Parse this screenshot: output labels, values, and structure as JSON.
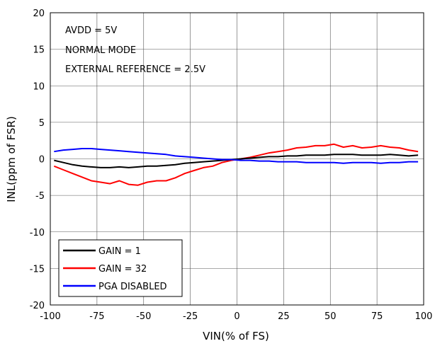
{
  "chart_data": {
    "type": "line",
    "title": "",
    "xlabel": "VIN(% of FS)",
    "ylabel": "INL(ppm of FSR)",
    "xlim": [
      -100,
      100
    ],
    "ylim": [
      -20,
      20
    ],
    "xticks": [
      -100,
      -75,
      -50,
      -25,
      0,
      25,
      50,
      75,
      100
    ],
    "yticks": [
      -20,
      -15,
      -10,
      -5,
      0,
      5,
      10,
      15,
      20
    ],
    "grid": true,
    "legend_position": "bottom-left",
    "annotations": [
      "AVDD = 5V",
      "NORMAL MODE",
      "EXTERNAL REFERENCE = 2.5V"
    ],
    "x": [
      -98,
      -93,
      -88,
      -83,
      -78,
      -73,
      -68,
      -63,
      -58,
      -53,
      -48,
      -43,
      -38,
      -33,
      -28,
      -23,
      -18,
      -13,
      -8,
      -3,
      2,
      7,
      12,
      17,
      22,
      27,
      32,
      37,
      42,
      47,
      52,
      57,
      62,
      67,
      72,
      77,
      82,
      87,
      92,
      97
    ],
    "series": [
      {
        "name": "GAIN = 1",
        "color": "#000000",
        "values": [
          -0.2,
          -0.5,
          -0.8,
          -1.0,
          -1.1,
          -1.2,
          -1.2,
          -1.1,
          -1.2,
          -1.1,
          -1.0,
          -1.0,
          -0.9,
          -0.8,
          -0.6,
          -0.5,
          -0.4,
          -0.3,
          -0.2,
          -0.1,
          0.0,
          0.1,
          0.2,
          0.3,
          0.3,
          0.4,
          0.4,
          0.5,
          0.5,
          0.5,
          0.6,
          0.6,
          0.6,
          0.5,
          0.5,
          0.5,
          0.6,
          0.5,
          0.4,
          0.5
        ]
      },
      {
        "name": "GAIN = 32",
        "color": "#ff0000",
        "values": [
          -1.0,
          -1.5,
          -2.0,
          -2.5,
          -3.0,
          -3.2,
          -3.4,
          -3.0,
          -3.5,
          -3.6,
          -3.2,
          -3.0,
          -3.0,
          -2.6,
          -2.0,
          -1.6,
          -1.2,
          -1.0,
          -0.5,
          -0.2,
          0.0,
          0.2,
          0.5,
          0.8,
          1.0,
          1.2,
          1.5,
          1.6,
          1.8,
          1.8,
          2.0,
          1.6,
          1.8,
          1.5,
          1.6,
          1.8,
          1.6,
          1.5,
          1.2,
          1.0
        ]
      },
      {
        "name": "PGA DISABLED",
        "color": "#0000ff",
        "values": [
          1.0,
          1.2,
          1.3,
          1.4,
          1.4,
          1.3,
          1.2,
          1.1,
          1.0,
          0.9,
          0.8,
          0.7,
          0.6,
          0.4,
          0.3,
          0.2,
          0.1,
          0.0,
          -0.1,
          -0.1,
          -0.2,
          -0.2,
          -0.3,
          -0.3,
          -0.4,
          -0.4,
          -0.4,
          -0.5,
          -0.5,
          -0.5,
          -0.5,
          -0.6,
          -0.5,
          -0.5,
          -0.5,
          -0.6,
          -0.5,
          -0.5,
          -0.4,
          -0.4
        ]
      }
    ]
  }
}
